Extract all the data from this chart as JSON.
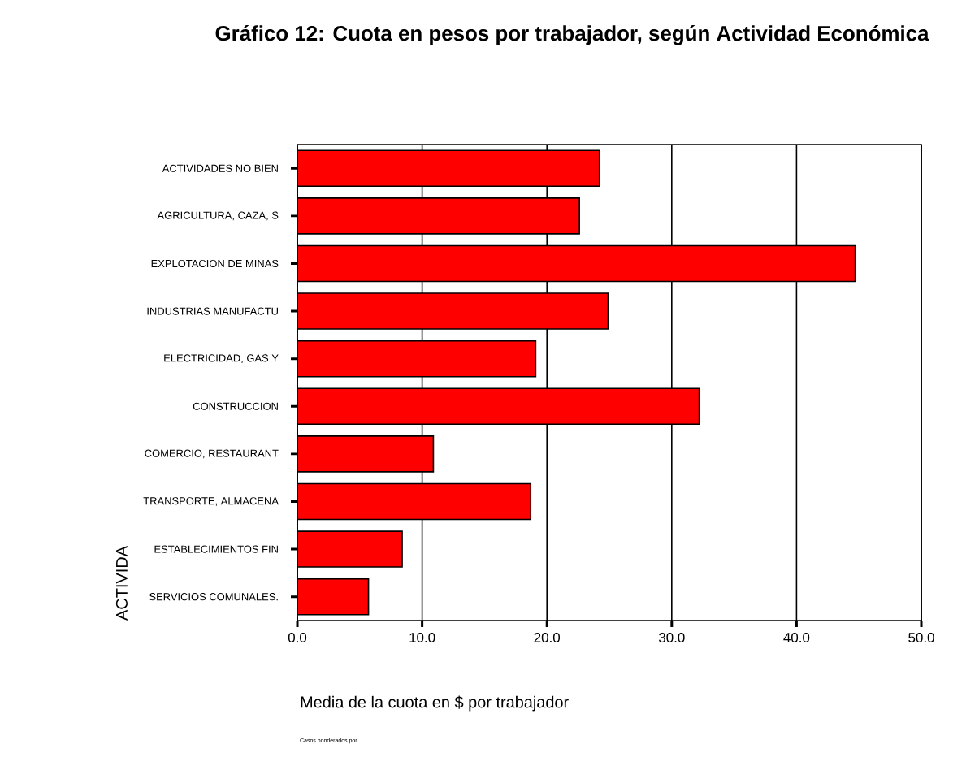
{
  "chart_data": {
    "type": "bar",
    "orientation": "horizontal",
    "title": "Gráfico 12: Cuota en pesos por trabajador, según Actividad Económica",
    "categories": [
      "ACTIVIDADES NO BIEN",
      "AGRICULTURA, CAZA, S",
      "EXPLOTACION DE MINAS",
      "INDUSTRIAS MANUFACTU",
      "ELECTRICIDAD, GAS Y",
      "CONSTRUCCION",
      "COMERCIO, RESTAURANT",
      "TRANSPORTE, ALMACENA",
      "ESTABLECIMIENTOS FIN",
      "SERVICIOS COMUNALES."
    ],
    "values": [
      24.2,
      22.6,
      44.7,
      24.9,
      19.1,
      32.2,
      10.9,
      18.7,
      8.4,
      5.7
    ],
    "color": "#ff0000",
    "xlim": [
      0,
      50
    ],
    "xticks": [
      {
        "value": 0,
        "label": "0.0"
      },
      {
        "value": 10,
        "label": "10.0"
      },
      {
        "value": 20,
        "label": "20.0"
      },
      {
        "value": 30,
        "label": "30.0"
      },
      {
        "value": 40,
        "label": "40.0"
      },
      {
        "value": 50,
        "label": "50.0"
      }
    ],
    "xlabel": "Media de la cuota en $ por trabajador",
    "ylabel": "ACTIVIDA",
    "grid": "x",
    "annotations": [
      "Casos ponderados por"
    ]
  }
}
